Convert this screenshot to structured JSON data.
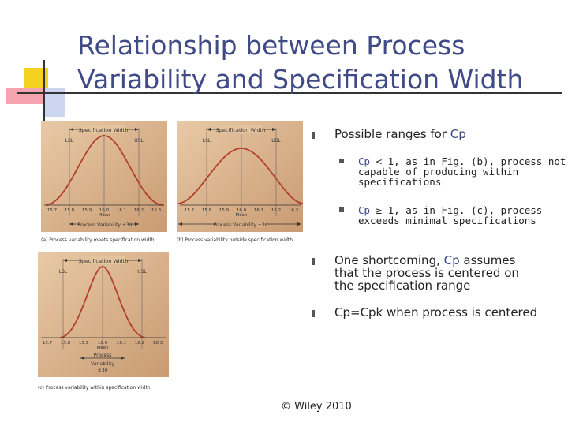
{
  "slide": {
    "title": "Relationship between Process Variability and Specification Width",
    "footer": "© Wiley 2010"
  },
  "figures": {
    "a": {
      "spec_label": "Specification Width",
      "lsl": "LSL",
      "usl": "USL",
      "ticks": [
        "15.7",
        "15.8",
        "15.9",
        "16.0",
        "16.1",
        "16.2",
        "16.3"
      ],
      "mean_label": "Mean",
      "pv_label": "Process Variability ±3σ",
      "caption": "(a) Process variability meets specification width"
    },
    "b": {
      "spec_label": "Specification Width",
      "lsl": "LSL",
      "usl": "USL",
      "ticks": [
        "15.7",
        "15.8",
        "15.9",
        "16.0",
        "16.1",
        "16.2",
        "16.3"
      ],
      "mean_label": "Mean",
      "pv_label": "Process Variability ±3σ",
      "caption": "(b) Process variability outside specification width"
    },
    "c": {
      "spec_label": "Specification Width",
      "lsl": "LSL",
      "usl": "USL",
      "ticks": [
        "15.7",
        "15.8",
        "15.9",
        "16.0",
        "16.1",
        "16.2",
        "16.3"
      ],
      "mean_label": "Mean",
      "pv_line1": "Process",
      "pv_line2": "Variability",
      "pv_line3": "±3σ",
      "caption": "(c) Process variability within specification width"
    }
  },
  "bullets": {
    "b1": {
      "pre": "Possible ranges for ",
      "cp": "Cp",
      "post": ""
    },
    "s1": {
      "cp": "Cp",
      "post": " < 1, as in Fig. (b), process not capable of producing within specifications"
    },
    "s2": {
      "cp": "Cp",
      "post": " ≥ 1, as in Fig. (c), process exceeds minimal specifications"
    },
    "b2": {
      "pre": "One shortcoming, ",
      "cp": "Cp",
      "post": " assumes that the process is centered on the specification range"
    },
    "b3": {
      "pre": "Cp=Cpk when process is centered"
    }
  },
  "colors": {
    "title": "#3f4a86",
    "panel_bg": "#dcb48e",
    "curve": "#b2402a",
    "cp_accent": "#3f4a86"
  }
}
